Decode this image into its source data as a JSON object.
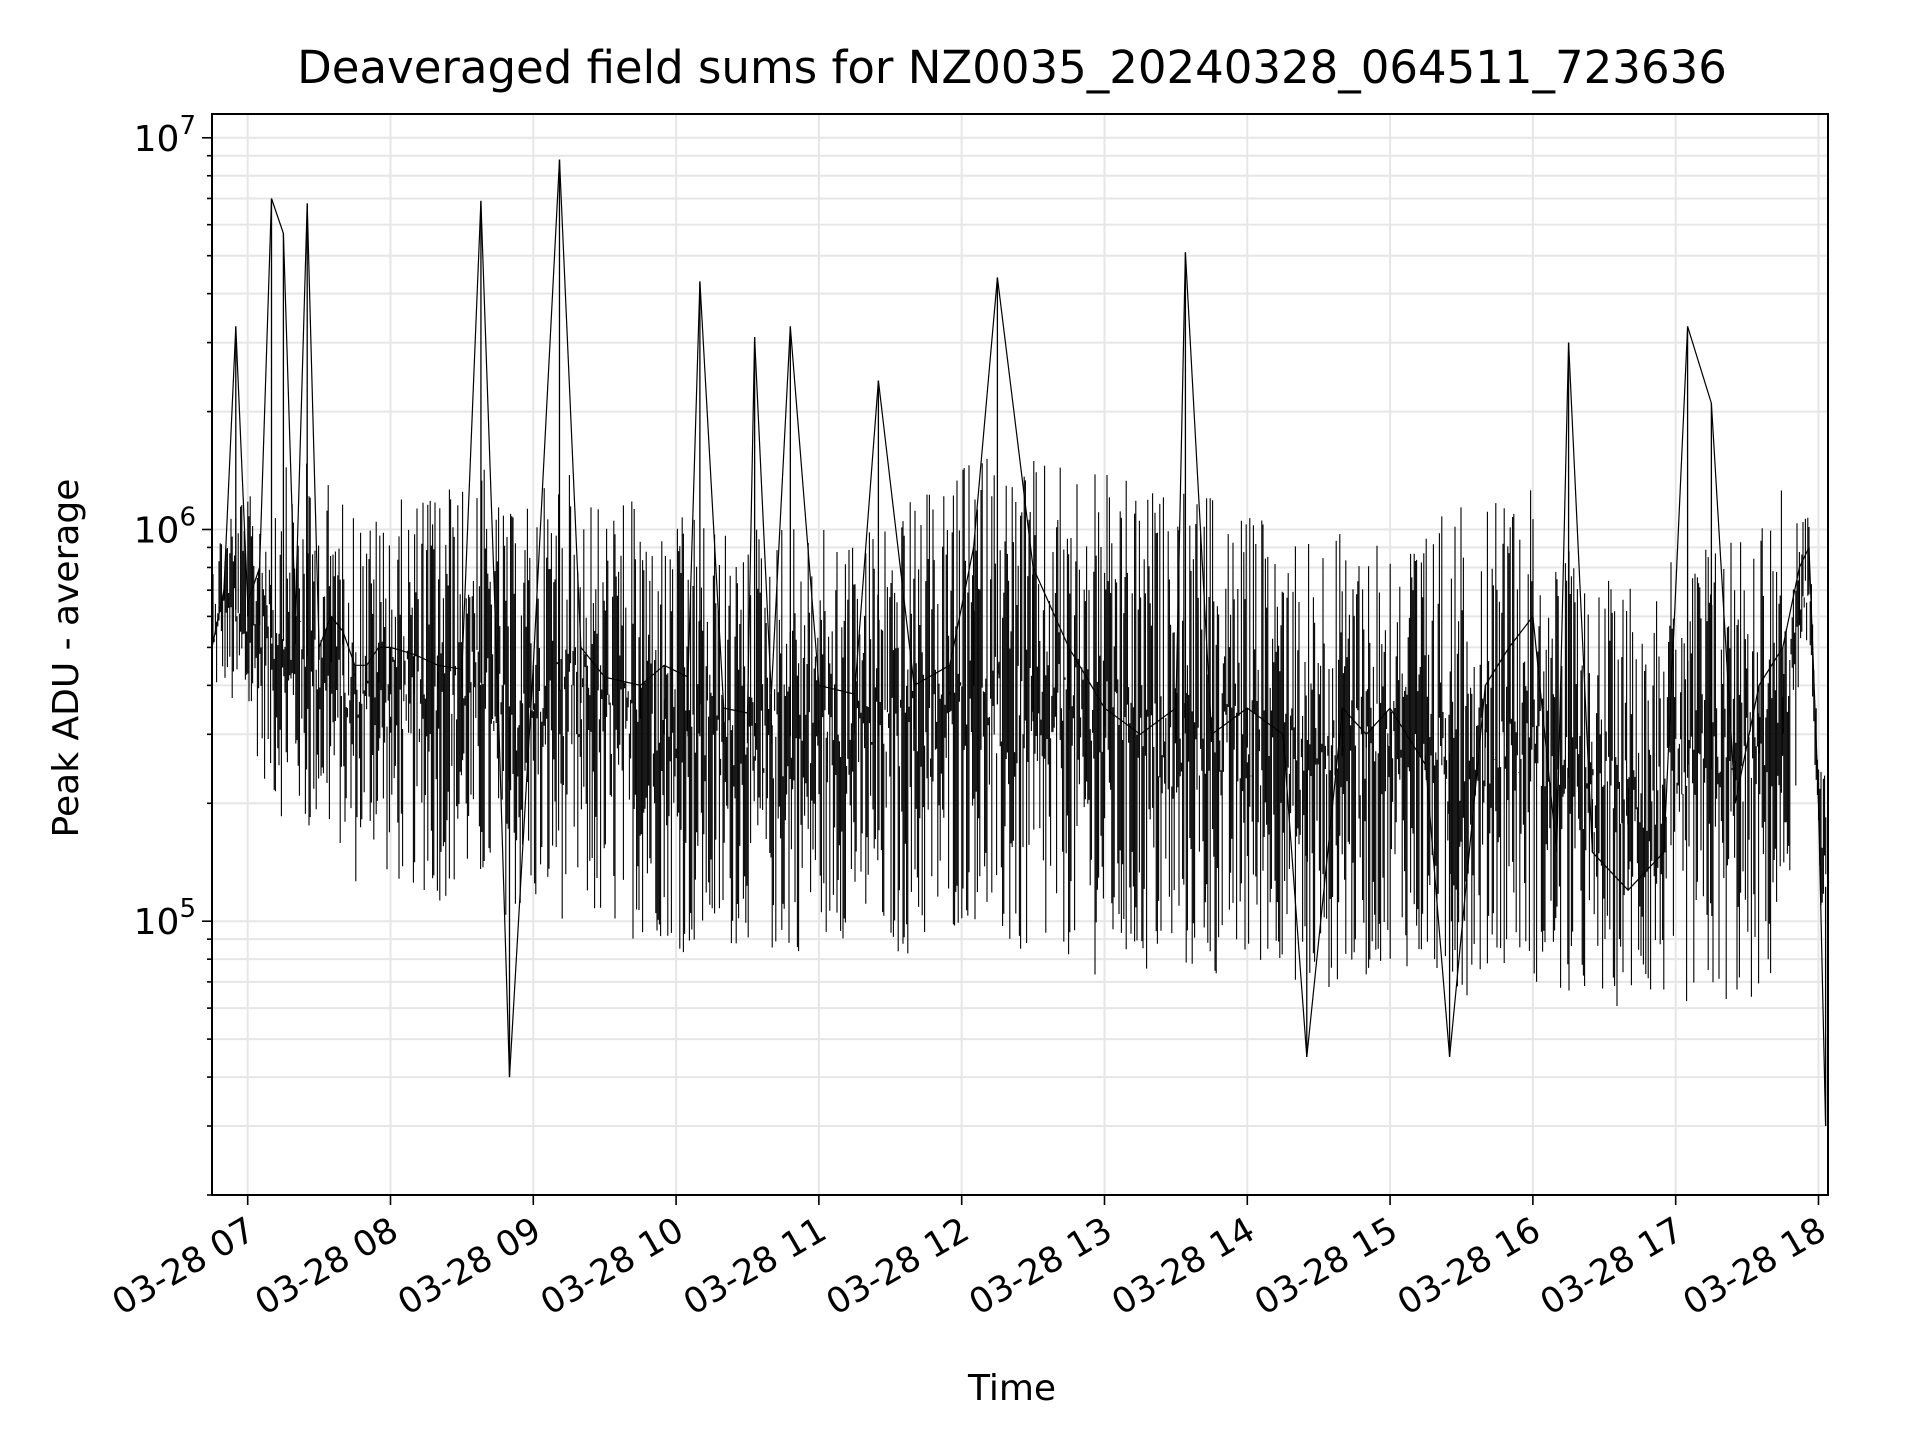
{
  "chart_data": {
    "type": "line",
    "title": "Deaveraged field sums for NZ0035_20240328_064511_723636",
    "xlabel": "Time",
    "ylabel": "Peak ADU - average",
    "yscale": "log",
    "ylim": [
      20000,
      11500000
    ],
    "xlim": [
      "2024-03-28 06:45",
      "2024-03-28 18:04"
    ],
    "grid": true,
    "line_color": "#000000",
    "grid_color": "#e6e6e6",
    "x_ticks": [
      "03-28 07",
      "03-28 08",
      "03-28 09",
      "03-28 10",
      "03-28 11",
      "03-28 12",
      "03-28 13",
      "03-28 14",
      "03-28 15",
      "03-28 16",
      "03-28 17",
      "03-28 18"
    ],
    "x_tick_values": [
      "2024-03-28 07:00",
      "2024-03-28 08:00",
      "2024-03-28 09:00",
      "2024-03-28 10:00",
      "2024-03-28 11:00",
      "2024-03-28 12:00",
      "2024-03-28 13:00",
      "2024-03-28 14:00",
      "2024-03-28 15:00",
      "2024-03-28 16:00",
      "2024-03-28 17:00",
      "2024-03-28 18:00"
    ],
    "y_ticks": [
      {
        "base": "10",
        "exp": "5",
        "value": 100000
      },
      {
        "base": "10",
        "exp": "6",
        "value": 1000000
      },
      {
        "base": "10",
        "exp": "7",
        "value": 10000000
      }
    ],
    "series": [
      {
        "x": [
          "2024-03-28 06:45",
          "2024-03-28 06:50",
          "2024-03-28 06:55",
          "2024-03-28 07:00",
          "2024-03-28 07:05",
          "2024-03-28 07:10",
          "2024-03-28 07:15",
          "2024-03-28 07:20",
          "2024-03-28 07:25",
          "2024-03-28 07:30",
          "2024-03-28 07:35",
          "2024-03-28 07:40",
          "2024-03-28 07:45",
          "2024-03-28 07:50",
          "2024-03-28 07:55",
          "2024-03-28 08:00",
          "2024-03-28 08:10",
          "2024-03-28 08:20",
          "2024-03-28 08:30",
          "2024-03-28 08:38",
          "2024-03-28 08:45",
          "2024-03-28 08:50",
          "2024-03-28 09:00",
          "2024-03-28 09:11",
          "2024-03-28 09:20",
          "2024-03-28 09:30",
          "2024-03-28 09:45",
          "2024-03-28 09:55",
          "2024-03-28 10:05",
          "2024-03-28 10:10",
          "2024-03-28 10:20",
          "2024-03-28 10:30",
          "2024-03-28 10:33",
          "2024-03-28 10:40",
          "2024-03-28 10:48",
          "2024-03-28 11:00",
          "2024-03-28 11:15",
          "2024-03-28 11:25",
          "2024-03-28 11:40",
          "2024-03-28 11:55",
          "2024-03-28 12:05",
          "2024-03-28 12:15",
          "2024-03-28 12:30",
          "2024-03-28 12:45",
          "2024-03-28 13:00",
          "2024-03-28 13:15",
          "2024-03-28 13:30",
          "2024-03-28 13:34",
          "2024-03-28 13:45",
          "2024-03-28 14:00",
          "2024-03-28 14:15",
          "2024-03-28 14:25",
          "2024-03-28 14:40",
          "2024-03-28 14:50",
          "2024-03-28 15:00",
          "2024-03-28 15:15",
          "2024-03-28 15:25",
          "2024-03-28 15:40",
          "2024-03-28 15:50",
          "2024-03-28 16:00",
          "2024-03-28 16:10",
          "2024-03-28 16:15",
          "2024-03-28 16:25",
          "2024-03-28 16:40",
          "2024-03-28 16:55",
          "2024-03-28 17:05",
          "2024-03-28 17:15",
          "2024-03-28 17:25",
          "2024-03-28 17:35",
          "2024-03-28 17:45",
          "2024-03-28 17:52",
          "2024-03-28 17:56",
          "2024-03-28 18:00",
          "2024-03-28 18:03"
        ],
        "y": [
          500000,
          700000,
          3300000,
          650000,
          800000,
          7000000,
          5700000,
          600000,
          6800000,
          500000,
          600000,
          550000,
          450000,
          450000,
          500000,
          500000,
          480000,
          450000,
          440000,
          6900000,
          400000,
          40000,
          450000,
          8800000,
          500000,
          420000,
          400000,
          450000,
          420000,
          4300000,
          350000,
          340000,
          3100000,
          380000,
          3300000,
          400000,
          380000,
          2400000,
          400000,
          450000,
          900000,
          4400000,
          800000,
          500000,
          350000,
          300000,
          350000,
          5100000,
          300000,
          350000,
          300000,
          45000,
          350000,
          300000,
          350000,
          250000,
          45000,
          400000,
          500000,
          600000,
          150000,
          3000000,
          150000,
          120000,
          150000,
          3300000,
          2100000,
          200000,
          400000,
          500000,
          800000,
          900000,
          200000,
          30000
        ],
        "band_low": [
          350000,
          400000,
          300000,
          300000,
          250000,
          200000,
          180000,
          200000,
          150000,
          180000,
          150000,
          150000,
          120000,
          150000,
          150000,
          120000,
          120000,
          110000,
          120000,
          110000,
          110000,
          100000,
          100000,
          100000,
          100000,
          90000,
          90000,
          90000,
          80000,
          80000,
          80000,
          90000,
          80000,
          80000,
          80000,
          90000,
          90000,
          80000,
          80000,
          90000,
          100000,
          80000,
          70000,
          80000,
          70000,
          70000,
          70000,
          70000,
          70000,
          70000,
          80000,
          60000,
          70000,
          70000,
          80000,
          70000,
          60000,
          70000,
          80000,
          70000,
          60000,
          60000,
          60000,
          60000,
          60000,
          60000,
          60000,
          60000,
          60000,
          70000,
          300000,
          500000,
          150000,
          60000
        ],
        "band_high": [
          900000,
          1100000,
          1300000,
          1200000,
          1300000,
          1400000,
          1500000,
          1300000,
          1500000,
          1200000,
          1400000,
          1200000,
          1200000,
          1100000,
          1100000,
          1200000,
          1200000,
          1400000,
          1300000,
          1500000,
          1200000,
          1100000,
          1200000,
          1500000,
          1300000,
          1200000,
          1200000,
          1000000,
          1100000,
          1100000,
          1000000,
          900000,
          1100000,
          1000000,
          1100000,
          1000000,
          1000000,
          1100000,
          1200000,
          1300000,
          1600000,
          1600000,
          1500000,
          1500000,
          1400000,
          1300000,
          1200000,
          1300000,
          1200000,
          1100000,
          1100000,
          1000000,
          1000000,
          1100000,
          1000000,
          1000000,
          1200000,
          1100000,
          1300000,
          1400000,
          800000,
          900000,
          700000,
          800000,
          800000,
          900000,
          1000000,
          1100000,
          1200000,
          1300000,
          1100000,
          1100000,
          300000,
          250000
        ]
      }
    ]
  }
}
